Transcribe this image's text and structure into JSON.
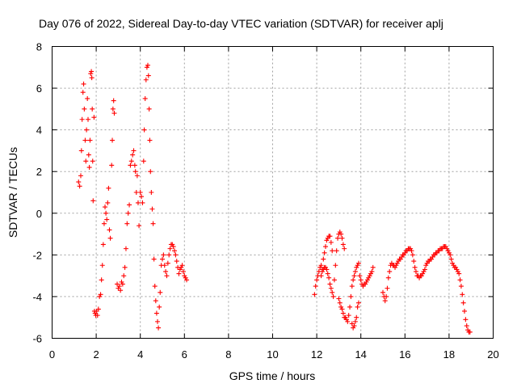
{
  "chart_data": {
    "type": "scatter",
    "title": "Day 076 of 2022, Sidereal Day-to-day VTEC variation (SDTVAR) for receiver aplj",
    "xlabel": "GPS time / hours",
    "ylabel": "SDTVAR / TECUs",
    "xlim": [
      0,
      20
    ],
    "ylim": [
      -6,
      8
    ],
    "xticks": [
      "0",
      "2",
      "4",
      "6",
      "8",
      "10",
      "12",
      "14",
      "16",
      "18",
      "20"
    ],
    "yticks": [
      "-6",
      "-4",
      "-2",
      "0",
      "2",
      "4",
      "6",
      "8"
    ],
    "grid": true,
    "marker": "+",
    "color": "#ff0000",
    "series": [
      {
        "name": "SDTVAR",
        "points": [
          [
            1.2,
            1.5
          ],
          [
            1.25,
            1.3
          ],
          [
            1.3,
            1.8
          ],
          [
            1.33,
            3.0
          ],
          [
            1.36,
            4.5
          ],
          [
            1.4,
            5.8
          ],
          [
            1.43,
            6.2
          ],
          [
            1.46,
            5.0
          ],
          [
            1.5,
            3.5
          ],
          [
            1.53,
            2.5
          ],
          [
            1.56,
            4.0
          ],
          [
            1.6,
            5.5
          ],
          [
            1.63,
            4.5
          ],
          [
            1.66,
            2.8
          ],
          [
            1.69,
            2.2
          ],
          [
            1.72,
            3.5
          ],
          [
            1.75,
            6.7
          ],
          [
            1.78,
            6.8
          ],
          [
            1.8,
            6.5
          ],
          [
            1.82,
            5.0
          ],
          [
            1.84,
            2.5
          ],
          [
            1.86,
            0.6
          ],
          [
            1.9,
            4.6
          ],
          [
            1.92,
            -4.7
          ],
          [
            1.95,
            -4.8
          ],
          [
            1.98,
            -4.9
          ],
          [
            2.02,
            -4.7
          ],
          [
            2.06,
            -4.9
          ],
          [
            2.1,
            -4.6
          ],
          [
            2.15,
            -4.0
          ],
          [
            2.2,
            -3.9
          ],
          [
            2.24,
            -3.2
          ],
          [
            2.28,
            -2.5
          ],
          [
            2.32,
            -1.5
          ],
          [
            2.36,
            -0.5
          ],
          [
            2.4,
            0.3
          ],
          [
            2.44,
            0.0
          ],
          [
            2.48,
            -0.3
          ],
          [
            2.52,
            0.5
          ],
          [
            2.56,
            1.2
          ],
          [
            2.6,
            -0.8
          ],
          [
            2.64,
            -1.2
          ],
          [
            2.7,
            2.3
          ],
          [
            2.73,
            3.5
          ],
          [
            2.76,
            5.0
          ],
          [
            2.79,
            5.4
          ],
          [
            2.82,
            4.8
          ],
          [
            2.95,
            -3.4
          ],
          [
            3.0,
            -3.6
          ],
          [
            3.05,
            -3.5
          ],
          [
            3.1,
            -3.7
          ],
          [
            3.15,
            -3.3
          ],
          [
            3.2,
            -3.4
          ],
          [
            3.25,
            -3.0
          ],
          [
            3.3,
            -2.6
          ],
          [
            3.35,
            -1.7
          ],
          [
            3.4,
            -0.5
          ],
          [
            3.45,
            0.0
          ],
          [
            3.5,
            0.4
          ],
          [
            3.55,
            2.3
          ],
          [
            3.6,
            2.5
          ],
          [
            3.65,
            2.8
          ],
          [
            3.7,
            3.0
          ],
          [
            3.75,
            2.3
          ],
          [
            3.78,
            2.0
          ],
          [
            3.82,
            1.0
          ],
          [
            3.86,
            1.8
          ],
          [
            3.9,
            0.5
          ],
          [
            3.94,
            -0.6
          ],
          [
            4.0,
            1.0
          ],
          [
            4.05,
            0.8
          ],
          [
            4.1,
            0.5
          ],
          [
            4.15,
            2.5
          ],
          [
            4.18,
            4.0
          ],
          [
            4.22,
            5.5
          ],
          [
            4.26,
            6.4
          ],
          [
            4.3,
            7.0
          ],
          [
            4.34,
            7.1
          ],
          [
            4.37,
            6.6
          ],
          [
            4.4,
            5.0
          ],
          [
            4.43,
            3.5
          ],
          [
            4.46,
            2.0
          ],
          [
            4.5,
            1.0
          ],
          [
            4.54,
            0.2
          ],
          [
            4.58,
            -0.5
          ],
          [
            4.62,
            -2.2
          ],
          [
            4.66,
            -3.5
          ],
          [
            4.7,
            -4.2
          ],
          [
            4.74,
            -4.8
          ],
          [
            4.78,
            -5.2
          ],
          [
            4.82,
            -5.5
          ],
          [
            4.86,
            -4.5
          ],
          [
            4.9,
            -3.8
          ],
          [
            4.95,
            -2.5
          ],
          [
            5.0,
            -2.2
          ],
          [
            5.05,
            -2.0
          ],
          [
            5.1,
            -2.5
          ],
          [
            5.15,
            -2.8
          ],
          [
            5.2,
            -3.0
          ],
          [
            5.25,
            -2.4
          ],
          [
            5.3,
            -2.0
          ],
          [
            5.35,
            -1.7
          ],
          [
            5.4,
            -1.5
          ],
          [
            5.45,
            -1.5
          ],
          [
            5.5,
            -1.6
          ],
          [
            5.55,
            -1.8
          ],
          [
            5.6,
            -2.0
          ],
          [
            5.65,
            -2.3
          ],
          [
            5.7,
            -2.6
          ],
          [
            5.75,
            -2.9
          ],
          [
            5.8,
            -2.7
          ],
          [
            5.85,
            -2.6
          ],
          [
            5.9,
            -2.5
          ],
          [
            5.95,
            -2.8
          ],
          [
            6.0,
            -3.0
          ],
          [
            6.05,
            -3.1
          ],
          [
            6.1,
            -3.2
          ],
          [
            11.9,
            -3.9
          ],
          [
            11.95,
            -3.5
          ],
          [
            12.0,
            -3.2
          ],
          [
            12.05,
            -3.0
          ],
          [
            12.1,
            -2.8
          ],
          [
            12.15,
            -2.6
          ],
          [
            12.2,
            -2.5
          ],
          [
            12.25,
            -2.7
          ],
          [
            12.3,
            -2.2
          ],
          [
            12.35,
            -1.9
          ],
          [
            12.4,
            -1.6
          ],
          [
            12.45,
            -1.3
          ],
          [
            12.5,
            -1.2
          ],
          [
            12.55,
            -1.1
          ],
          [
            12.6,
            -1.1
          ],
          [
            12.65,
            -1.4
          ],
          [
            12.7,
            -1.8
          ],
          [
            12.2,
            -3.0
          ],
          [
            12.25,
            -2.8
          ],
          [
            12.3,
            -2.7
          ],
          [
            12.35,
            -2.6
          ],
          [
            12.4,
            -2.6
          ],
          [
            12.45,
            -2.7
          ],
          [
            12.5,
            -2.9
          ],
          [
            12.55,
            -3.1
          ],
          [
            12.6,
            -3.4
          ],
          [
            12.65,
            -3.6
          ],
          [
            12.7,
            -3.8
          ],
          [
            12.75,
            -4.0
          ],
          [
            12.8,
            -3.2
          ],
          [
            12.85,
            -2.5
          ],
          [
            12.9,
            -1.8
          ],
          [
            12.95,
            -1.2
          ],
          [
            13.0,
            -1.0
          ],
          [
            13.05,
            -0.9
          ],
          [
            13.1,
            -1.0
          ],
          [
            13.15,
            -1.2
          ],
          [
            13.2,
            -1.5
          ],
          [
            13.25,
            -1.7
          ],
          [
            13.0,
            -4.1
          ],
          [
            13.05,
            -4.3
          ],
          [
            13.1,
            -4.5
          ],
          [
            13.15,
            -4.6
          ],
          [
            13.2,
            -4.8
          ],
          [
            13.25,
            -5.0
          ],
          [
            13.3,
            -5.0
          ],
          [
            13.35,
            -5.1
          ],
          [
            13.4,
            -5.2
          ],
          [
            13.45,
            -4.9
          ],
          [
            13.5,
            -4.5
          ],
          [
            13.55,
            -4.0
          ],
          [
            13.6,
            -3.5
          ],
          [
            13.65,
            -3.2
          ],
          [
            13.7,
            -3.0
          ],
          [
            13.75,
            -2.8
          ],
          [
            13.8,
            -2.6
          ],
          [
            13.85,
            -2.5
          ],
          [
            13.9,
            -2.4
          ],
          [
            13.6,
            -5.3
          ],
          [
            13.65,
            -5.5
          ],
          [
            13.7,
            -5.4
          ],
          [
            13.75,
            -5.2
          ],
          [
            13.8,
            -5.0
          ],
          [
            13.85,
            -4.5
          ],
          [
            13.9,
            -4.3
          ],
          [
            13.95,
            -3.0
          ],
          [
            14.0,
            -3.2
          ],
          [
            14.05,
            -3.4
          ],
          [
            14.1,
            -3.5
          ],
          [
            14.15,
            -3.4
          ],
          [
            14.2,
            -3.4
          ],
          [
            14.25,
            -3.3
          ],
          [
            14.3,
            -3.2
          ],
          [
            14.35,
            -3.1
          ],
          [
            14.4,
            -3.0
          ],
          [
            14.45,
            -2.9
          ],
          [
            14.5,
            -2.8
          ],
          [
            14.55,
            -2.6
          ],
          [
            15.0,
            -3.8
          ],
          [
            15.05,
            -4.0
          ],
          [
            15.1,
            -4.2
          ],
          [
            15.15,
            -4.0
          ],
          [
            15.2,
            -3.6
          ],
          [
            15.25,
            -3.1
          ],
          [
            15.3,
            -2.8
          ],
          [
            15.35,
            -2.5
          ],
          [
            15.4,
            -2.4
          ],
          [
            15.45,
            -2.5
          ],
          [
            15.5,
            -2.5
          ],
          [
            15.55,
            -2.6
          ],
          [
            15.6,
            -2.5
          ],
          [
            15.65,
            -2.4
          ],
          [
            15.7,
            -2.3
          ],
          [
            15.75,
            -2.2
          ],
          [
            15.8,
            -2.2
          ],
          [
            15.85,
            -2.1
          ],
          [
            15.9,
            -2.0
          ],
          [
            15.95,
            -2.0
          ],
          [
            16.0,
            -1.9
          ],
          [
            16.05,
            -1.8
          ],
          [
            16.1,
            -1.8
          ],
          [
            16.15,
            -1.7
          ],
          [
            16.2,
            -1.7
          ],
          [
            16.25,
            -1.7
          ],
          [
            16.3,
            -1.8
          ],
          [
            16.35,
            -2.0
          ],
          [
            16.4,
            -2.3
          ],
          [
            16.45,
            -2.6
          ],
          [
            16.5,
            -2.8
          ],
          [
            16.55,
            -3.0
          ],
          [
            16.6,
            -3.0
          ],
          [
            16.65,
            -3.1
          ],
          [
            16.7,
            -3.0
          ],
          [
            16.75,
            -3.0
          ],
          [
            16.8,
            -2.9
          ],
          [
            16.85,
            -2.8
          ],
          [
            16.9,
            -2.7
          ],
          [
            16.95,
            -2.5
          ],
          [
            17.0,
            -2.4
          ],
          [
            17.05,
            -2.3
          ],
          [
            17.1,
            -2.3
          ],
          [
            17.15,
            -2.2
          ],
          [
            17.2,
            -2.2
          ],
          [
            17.25,
            -2.1
          ],
          [
            17.3,
            -2.0
          ],
          [
            17.35,
            -2.0
          ],
          [
            17.4,
            -1.9
          ],
          [
            17.45,
            -1.9
          ],
          [
            17.5,
            -1.8
          ],
          [
            17.55,
            -1.8
          ],
          [
            17.6,
            -1.7
          ],
          [
            17.65,
            -1.7
          ],
          [
            17.7,
            -1.7
          ],
          [
            17.75,
            -1.6
          ],
          [
            17.8,
            -1.6
          ],
          [
            17.85,
            -1.6
          ],
          [
            17.9,
            -1.7
          ],
          [
            17.95,
            -1.8
          ],
          [
            18.0,
            -1.9
          ],
          [
            18.05,
            -2.0
          ],
          [
            18.1,
            -2.2
          ],
          [
            18.15,
            -2.4
          ],
          [
            18.2,
            -2.5
          ],
          [
            18.25,
            -2.6
          ],
          [
            18.3,
            -2.6
          ],
          [
            18.35,
            -2.7
          ],
          [
            18.4,
            -2.8
          ],
          [
            18.45,
            -2.9
          ],
          [
            18.5,
            -3.2
          ],
          [
            18.55,
            -3.5
          ],
          [
            18.6,
            -3.9
          ],
          [
            18.65,
            -4.3
          ],
          [
            18.7,
            -4.7
          ],
          [
            18.75,
            -5.1
          ],
          [
            18.8,
            -5.4
          ],
          [
            18.85,
            -5.6
          ],
          [
            18.9,
            -5.7
          ],
          [
            18.95,
            -5.7
          ]
        ]
      }
    ]
  }
}
